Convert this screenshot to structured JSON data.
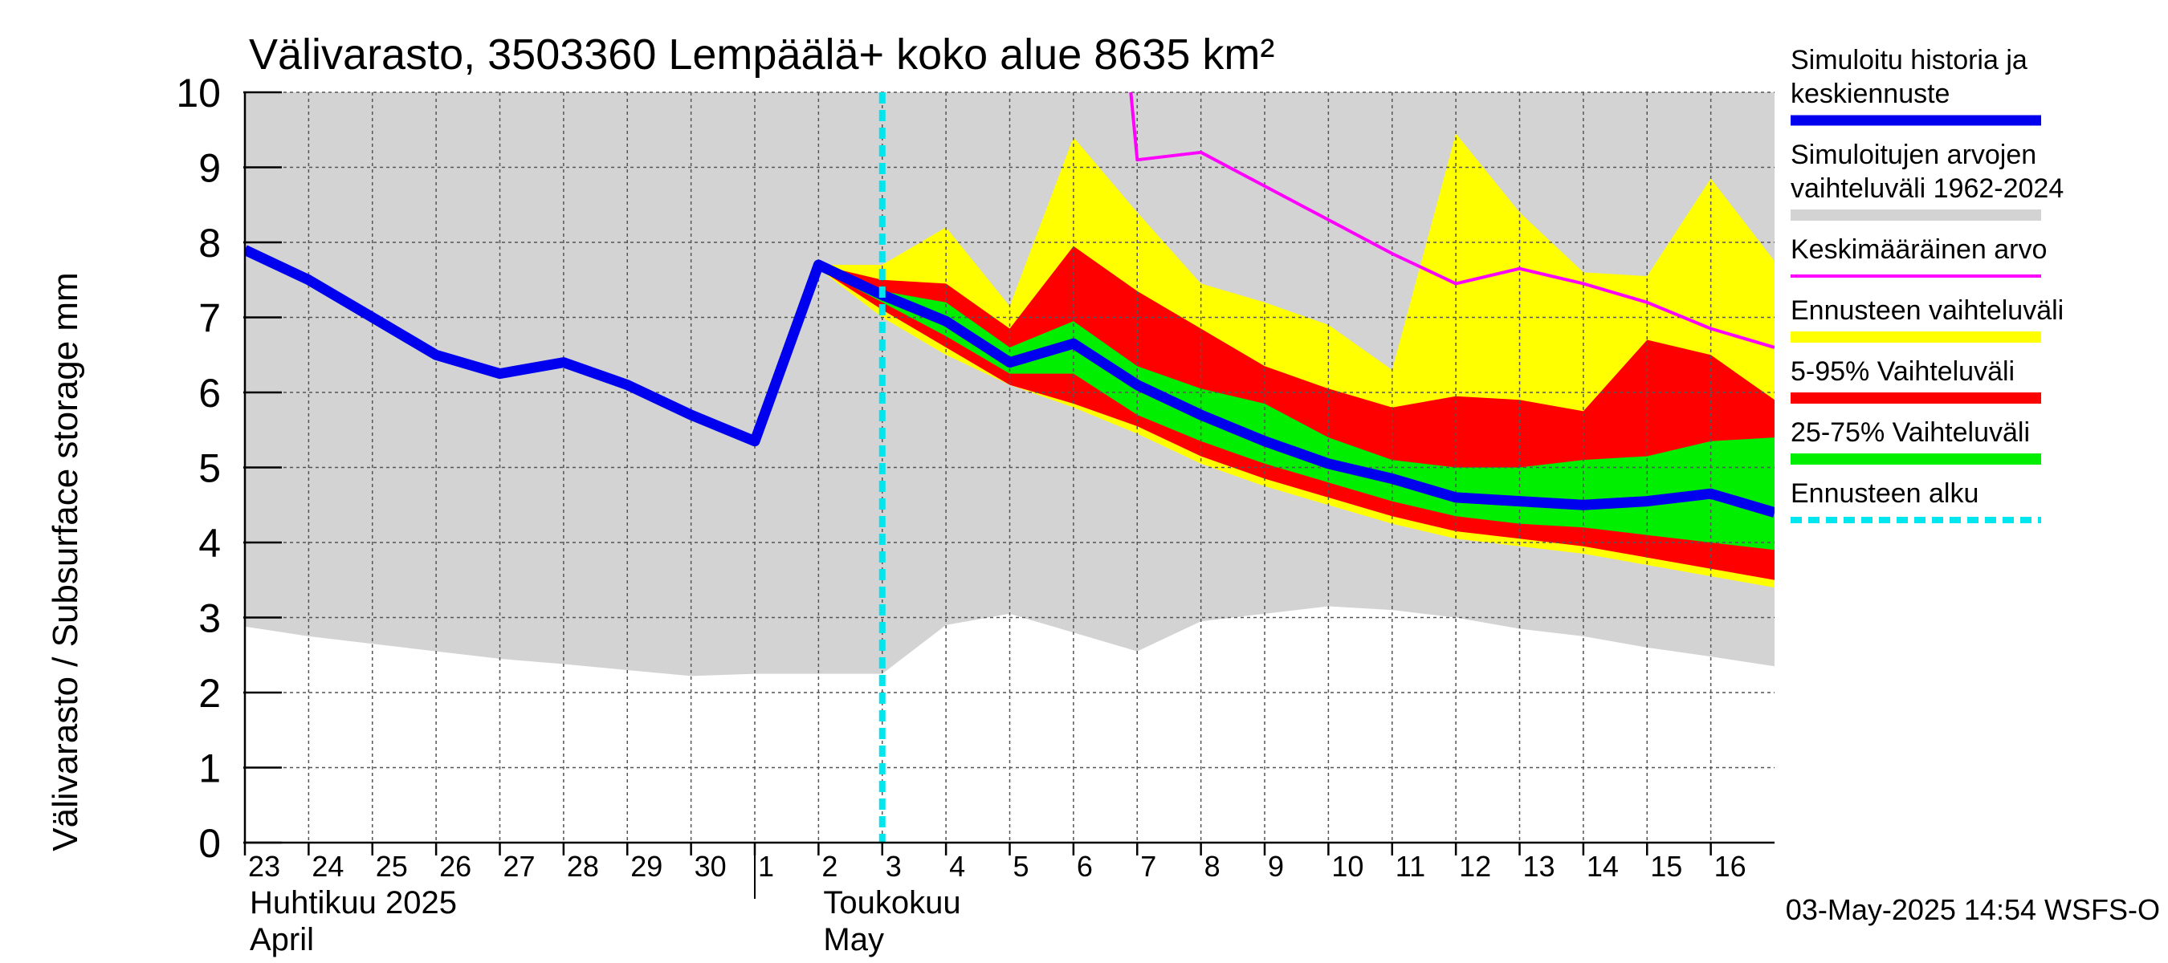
{
  "chart_data": {
    "type": "area",
    "title": "Välivarasto, 3503360 Lempäälä+ koko alue 8635 km²",
    "ylabel": "Välivarasto / Subsurface storage  mm",
    "ylim": [
      0,
      10
    ],
    "yticks": [
      "0",
      "1",
      "2",
      "3",
      "4",
      "5",
      "6",
      "7",
      "8",
      "9",
      "10"
    ],
    "x_range": [
      23,
      47
    ],
    "day_labels": [
      {
        "x": 23,
        "label": "23"
      },
      {
        "x": 24,
        "label": "24"
      },
      {
        "x": 25,
        "label": "25"
      },
      {
        "x": 26,
        "label": "26"
      },
      {
        "x": 27,
        "label": "27"
      },
      {
        "x": 28,
        "label": "28"
      },
      {
        "x": 29,
        "label": "29"
      },
      {
        "x": 30,
        "label": "30"
      },
      {
        "x": 31,
        "label": "1"
      },
      {
        "x": 32,
        "label": "2"
      },
      {
        "x": 33,
        "label": "3"
      },
      {
        "x": 34,
        "label": "4"
      },
      {
        "x": 35,
        "label": "5"
      },
      {
        "x": 36,
        "label": "6"
      },
      {
        "x": 37,
        "label": "7"
      },
      {
        "x": 38,
        "label": "8"
      },
      {
        "x": 39,
        "label": "9"
      },
      {
        "x": 40,
        "label": "10"
      },
      {
        "x": 41,
        "label": "11"
      },
      {
        "x": 42,
        "label": "12"
      },
      {
        "x": 43,
        "label": "13"
      },
      {
        "x": 44,
        "label": "14"
      },
      {
        "x": 45,
        "label": "15"
      },
      {
        "x": 46,
        "label": "16"
      }
    ],
    "month_labels": [
      {
        "x": 23,
        "fi": "Huhtikuu  2025",
        "en": "April"
      },
      {
        "x": 32,
        "fi": "Toukokuu",
        "en": "May"
      }
    ],
    "forecast_start_x": 33,
    "month_divider_x": 31,
    "series": [
      {
        "name": "Simuloitujen arvojen vaihteluväli 1962-2024",
        "kind": "band",
        "color": "#d3d3d3",
        "x": [
          23,
          24,
          25,
          26,
          27,
          28,
          29,
          30,
          31,
          32,
          33,
          34,
          35,
          36,
          37,
          38,
          39,
          40,
          41,
          42,
          43,
          44,
          45,
          46,
          47
        ],
        "lower": [
          2.88,
          2.75,
          2.65,
          2.55,
          2.45,
          2.38,
          2.3,
          2.22,
          2.25,
          2.25,
          2.25,
          2.9,
          3.05,
          2.8,
          2.55,
          2.95,
          3.05,
          3.15,
          3.1,
          3.0,
          2.85,
          2.75,
          2.6,
          2.48,
          2.35
        ],
        "upper": [
          10,
          10,
          10,
          10,
          10,
          10,
          10,
          10,
          10,
          10,
          10,
          10,
          10,
          10,
          10,
          10,
          10,
          10,
          10,
          10,
          10,
          10,
          10,
          10,
          10
        ]
      },
      {
        "name": "Ennusteen vaihteluväli",
        "kind": "band",
        "color": "#ffff00",
        "x": [
          32,
          33,
          34,
          35,
          36,
          37,
          38,
          39,
          40,
          41,
          42,
          43,
          44,
          45,
          46,
          47
        ],
        "lower": [
          7.65,
          7.0,
          6.5,
          6.1,
          5.8,
          5.45,
          5.05,
          4.75,
          4.5,
          4.25,
          4.05,
          3.95,
          3.85,
          3.7,
          3.55,
          3.4
        ],
        "upper": [
          7.7,
          7.7,
          8.2,
          7.15,
          9.4,
          8.4,
          7.45,
          7.2,
          6.9,
          6.3,
          9.45,
          8.4,
          7.6,
          7.55,
          8.85,
          7.75
        ]
      },
      {
        "name": "5-95% Vaihteluväli",
        "kind": "band",
        "color": "#ff0000",
        "x": [
          32,
          33,
          34,
          35,
          36,
          37,
          38,
          39,
          40,
          41,
          42,
          43,
          44,
          45,
          46,
          47
        ],
        "lower": [
          7.65,
          7.1,
          6.6,
          6.1,
          5.85,
          5.55,
          5.15,
          4.85,
          4.6,
          4.35,
          4.15,
          4.05,
          3.95,
          3.8,
          3.65,
          3.5
        ],
        "upper": [
          7.7,
          7.5,
          7.45,
          6.85,
          7.95,
          7.35,
          6.85,
          6.35,
          6.05,
          5.8,
          5.95,
          5.9,
          5.75,
          6.7,
          6.5,
          5.9
        ]
      },
      {
        "name": "25-75% Vaihteluväli",
        "kind": "band",
        "color": "#00ee00",
        "x": [
          32,
          33,
          34,
          35,
          36,
          37,
          38,
          39,
          40,
          41,
          42,
          43,
          44,
          45,
          46,
          47
        ],
        "lower": [
          7.65,
          7.2,
          6.75,
          6.25,
          6.25,
          5.7,
          5.35,
          5.05,
          4.8,
          4.55,
          4.35,
          4.25,
          4.2,
          4.1,
          4.0,
          3.9
        ],
        "upper": [
          7.7,
          7.35,
          7.2,
          6.6,
          6.95,
          6.35,
          6.05,
          5.85,
          5.4,
          5.1,
          5.0,
          5.0,
          5.1,
          5.15,
          5.35,
          5.4
        ]
      },
      {
        "name": "Keskimääräinen arvo",
        "kind": "line",
        "color": "#ff00ff",
        "x": [
          36.9,
          37,
          38,
          39,
          40,
          41,
          42,
          43,
          44,
          45,
          46,
          47
        ],
        "y": [
          10.0,
          9.1,
          9.2,
          8.75,
          8.3,
          7.85,
          7.45,
          7.65,
          7.45,
          7.2,
          6.85,
          6.6
        ]
      },
      {
        "name": "Simuloitu historia ja keskiennuste",
        "kind": "line",
        "color": "#0000ee",
        "x": [
          23,
          24,
          25,
          26,
          27,
          28,
          29,
          30,
          31,
          32,
          33,
          34,
          35,
          36,
          37,
          38,
          39,
          40,
          41,
          42,
          43,
          44,
          45,
          46,
          47
        ],
        "y": [
          7.9,
          7.5,
          7.0,
          6.5,
          6.25,
          6.4,
          6.1,
          5.7,
          5.35,
          7.7,
          7.3,
          6.95,
          6.4,
          6.65,
          6.1,
          5.7,
          5.35,
          5.05,
          4.85,
          4.6,
          4.55,
          4.5,
          4.55,
          4.65,
          4.4
        ]
      }
    ],
    "legend": [
      {
        "label": "Simuloitu historia ja\nkeskiennuste",
        "color": "#0000ee",
        "style": "thick"
      },
      {
        "label": "Simuloitujen arvojen\nvaihteluväli 1962-2024",
        "color": "#d3d3d3",
        "style": "band"
      },
      {
        "label": "Keskimääräinen arvo",
        "color": "#ff00ff",
        "style": "thin"
      },
      {
        "label": "Ennusteen vaihteluväli",
        "color": "#ffff00",
        "style": "band"
      },
      {
        "label": "5-95% Vaihteluväli",
        "color": "#ff0000",
        "style": "band"
      },
      {
        "label": "25-75% Vaihteluväli",
        "color": "#00ee00",
        "style": "band"
      },
      {
        "label": "Ennusteen alku",
        "color": "#00e5ee",
        "style": "dashed"
      }
    ],
    "legend_position": "right",
    "forecast_line_color": "#00e5ee",
    "footer": "03-May-2025 14:54 WSFS-O"
  }
}
